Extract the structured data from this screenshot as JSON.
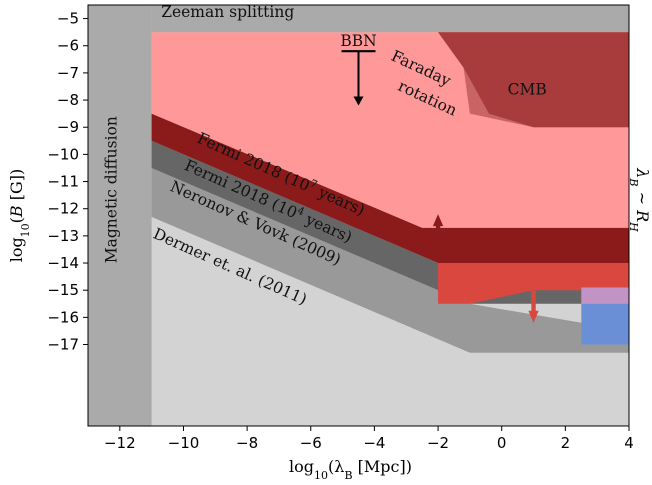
{
  "chart_data": {
    "type": "area",
    "title": "",
    "xlabel": "log₁₀(λ_B [Mpc])",
    "ylabel": "log₁₀(B [G])",
    "xlabel_parts": {
      "pre": "log",
      "sub1": "10",
      "mid": "(λ",
      "sub2": "B",
      "post": " [Mpc])"
    },
    "ylabel_parts": {
      "pre": "log",
      "sub1": "10",
      "mid": "(",
      "var": "B",
      "post": " [G])"
    },
    "right_label": {
      "main": "λ",
      "sub1": "B",
      "sim": " ∼ ",
      "r": "R",
      "sub2": "H"
    },
    "xlim": [
      -13,
      4
    ],
    "ylim": [
      -20,
      -4.5
    ],
    "x_ticks": [
      -12,
      -10,
      -8,
      -6,
      -4,
      -2,
      0,
      2,
      4
    ],
    "x_tick_labels": [
      "−12",
      "−10",
      "−8",
      "−6",
      "−4",
      "−2",
      "0",
      "2",
      "4"
    ],
    "y_ticks": [
      -5,
      -6,
      -7,
      -8,
      -9,
      -10,
      -11,
      -12,
      -13,
      -14,
      -15,
      -16,
      -17
    ],
    "y_tick_labels": [
      "−5",
      "−6",
      "−7",
      "−8",
      "−9",
      "−10",
      "−11",
      "−12",
      "−13",
      "−14",
      "−15",
      "−16",
      "−17"
    ],
    "regions": [
      {
        "name": "Zeeman splitting",
        "color": "#aaaaaa",
        "points": [
          [
            -11,
            -5.5
          ],
          [
            4,
            -5.5
          ],
          [
            4,
            -4.5
          ],
          [
            -11,
            -4.5
          ]
        ]
      },
      {
        "name": "Magnetic diffusion",
        "color": "#aaaaaa",
        "points": [
          [
            -13,
            -20
          ],
          [
            -11,
            -20
          ],
          [
            -11,
            -4.5
          ],
          [
            -13,
            -4.5
          ]
        ]
      },
      {
        "name": "right boundary",
        "color": "#aaaaaa",
        "points": [
          [
            4,
            -20
          ],
          [
            4.1,
            -20
          ],
          [
            4.1,
            -4.5
          ],
          [
            4,
            -4.5
          ]
        ]
      },
      {
        "name": "Dermer et. al. (2011)",
        "color": "#999999",
        "points": [
          [
            -11,
            -12.3
          ],
          [
            -1,
            -17.3
          ],
          [
            4,
            -17.3
          ],
          [
            4,
            -16.5
          ],
          [
            -1,
            -15.5
          ],
          [
            -11,
            -10.5
          ]
        ]
      },
      {
        "name": "Neronov & Vovk (2009)",
        "color": "#666666",
        "points": [
          [
            -11,
            -10.5
          ],
          [
            -1,
            -15.5
          ],
          [
            4,
            -15.5
          ],
          [
            4,
            -15.0
          ],
          [
            -2,
            -14.0
          ],
          [
            -11,
            -9.5
          ]
        ]
      },
      {
        "name": "Fermi 2018 (10^4 years)",
        "color": "#8b1a1a",
        "points": [
          [
            -11,
            -9.5
          ],
          [
            -2,
            -14.0
          ],
          [
            4,
            -14.0
          ],
          [
            4,
            -12.7
          ],
          [
            -2.5,
            -12.7
          ],
          [
            -11,
            -8.5
          ]
        ]
      },
      {
        "name": "Fermi 2018 (10^7 years)",
        "color": "#ff9999",
        "points": [
          [
            -11,
            -8.5
          ],
          [
            -2.5,
            -12.7
          ],
          [
            4,
            -12.7
          ],
          [
            4,
            -5.5
          ],
          [
            -11,
            -5.5
          ]
        ]
      },
      {
        "name": "lower red extension",
        "color": "#d9473f",
        "points": [
          [
            -2,
            -14.0
          ],
          [
            4,
            -14.0
          ],
          [
            4,
            -15.0
          ],
          [
            1,
            -15.0
          ],
          [
            -1,
            -15.5
          ],
          [
            -2,
            -15.5
          ]
        ]
      },
      {
        "name": "Faraday rotation",
        "color": "#c86464",
        "points": [
          [
            -4.6,
            -5.5
          ],
          [
            -2.0,
            -5.5
          ],
          [
            -1.2,
            -6.8
          ],
          [
            -1.0,
            -8.5
          ],
          [
            1,
            -9
          ],
          [
            4,
            -9
          ],
          [
            4,
            -5.5
          ]
        ]
      },
      {
        "name": "CMB",
        "color": "#a83c3c",
        "points": [
          [
            -2.0,
            -5.5
          ],
          [
            4,
            -5.5
          ],
          [
            4,
            -9
          ],
          [
            1,
            -9
          ],
          [
            -0.4,
            -8.5
          ],
          [
            -1.2,
            -6.8
          ]
        ]
      },
      {
        "name": "blue region",
        "color": "#6a8fd6",
        "points": [
          [
            2.5,
            -17.0
          ],
          [
            4,
            -17.0
          ],
          [
            4,
            -15.5
          ],
          [
            2.5,
            -15.5
          ]
        ]
      },
      {
        "name": "blue region light",
        "color": "#c294c6",
        "points": [
          [
            2.5,
            -15.5
          ],
          [
            4,
            -15.5
          ],
          [
            4,
            -14.9
          ],
          [
            2.5,
            -14.9
          ]
        ]
      }
    ],
    "arrows": [
      {
        "name": "up-arrow",
        "x": -2,
        "y_from": -13.6,
        "y_to": -12.2,
        "color": "#8b1a1a",
        "width": 0.25
      },
      {
        "name": "down-arrow",
        "x": 1,
        "y_from": -15.0,
        "y_to": -16.2,
        "color": "#d9473f",
        "width": 0.25
      }
    ],
    "bbn": {
      "label": "BBN",
      "x": -4.5,
      "y_bar": -6.2,
      "y_arrow": -8.2
    },
    "labels": [
      {
        "text": "Zeeman splitting",
        "x": -10.7,
        "y": -4.95,
        "rotate": 0,
        "anchor": "start"
      },
      {
        "text": "Magnetic diffusion",
        "x": -12.1,
        "y": -11.3,
        "rotate": -90,
        "anchor": "middle"
      },
      {
        "text": "CMB",
        "x": 0.8,
        "y": -7.8,
        "rotate": 0,
        "anchor": "middle"
      },
      {
        "text": "Faraday",
        "x": -2.6,
        "y": -7.0,
        "rotate": 25,
        "anchor": "middle"
      },
      {
        "text": "rotation",
        "x": -2.4,
        "y": -8.1,
        "rotate": 25,
        "anchor": "middle"
      },
      {
        "text": "Neronov & Vovk (2009)",
        "x": -7.8,
        "y": -12.7,
        "rotate": 24,
        "anchor": "middle"
      },
      {
        "text": "Dermer et. al. (2011)",
        "x": -8.6,
        "y": -14.3,
        "rotate": 24,
        "anchor": "middle"
      }
    ],
    "sup_labels": [
      {
        "pre": "Fermi 2018 (10",
        "sup": "7",
        "post": " years)",
        "x": -7.0,
        "y": -10.9,
        "rotate": 24
      },
      {
        "pre": "Fermi 2018 (10",
        "sup": "4",
        "post": " years)",
        "x": -7.4,
        "y": -11.9,
        "rotate": 24
      }
    ],
    "bbn_text": "BBN"
  }
}
